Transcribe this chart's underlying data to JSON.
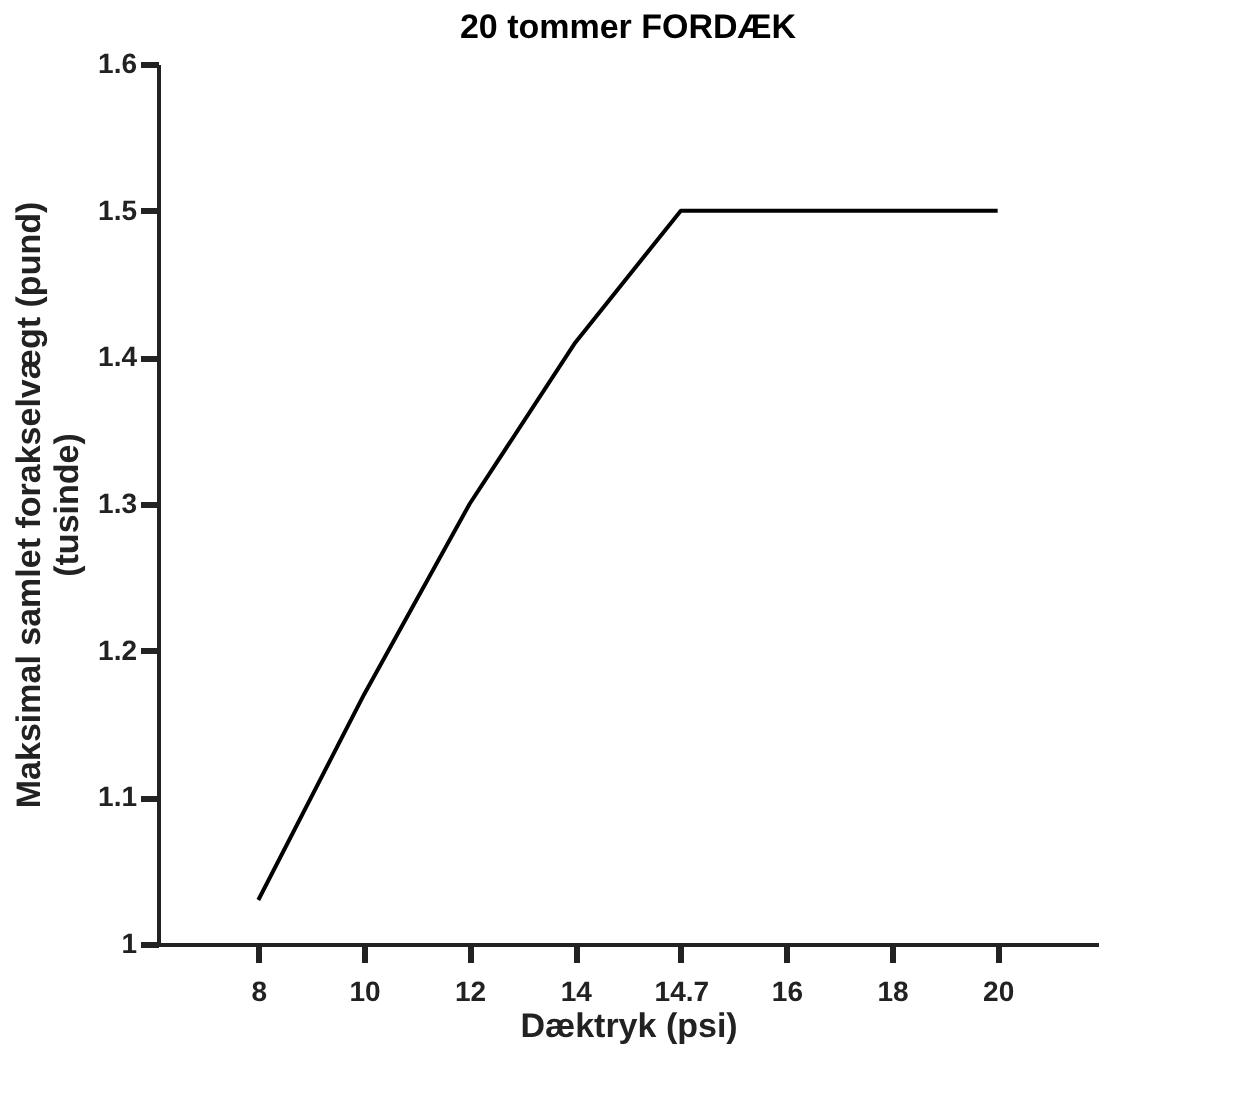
{
  "chart_data": {
    "type": "line",
    "title": "20 tommer FORDÆK",
    "xlabel": "Dæktryk (psi)",
    "ylabel": "Maksimal samlet forakselvægt (pund)\n(tusinde)",
    "categories": [
      "8",
      "10",
      "12",
      "14",
      "14.7",
      "16",
      "18",
      "20"
    ],
    "series": [
      {
        "color": "#000000",
        "values": [
          1.03,
          1.17,
          1.3,
          1.41,
          1.5,
          1.5,
          1.5,
          1.5
        ]
      }
    ],
    "ylim": [
      1,
      1.6
    ],
    "yticks": [
      1,
      1.1,
      1.2,
      1.3,
      1.4,
      1.5,
      1.6
    ],
    "grid": false,
    "marker": "none",
    "line_style": "solid"
  }
}
